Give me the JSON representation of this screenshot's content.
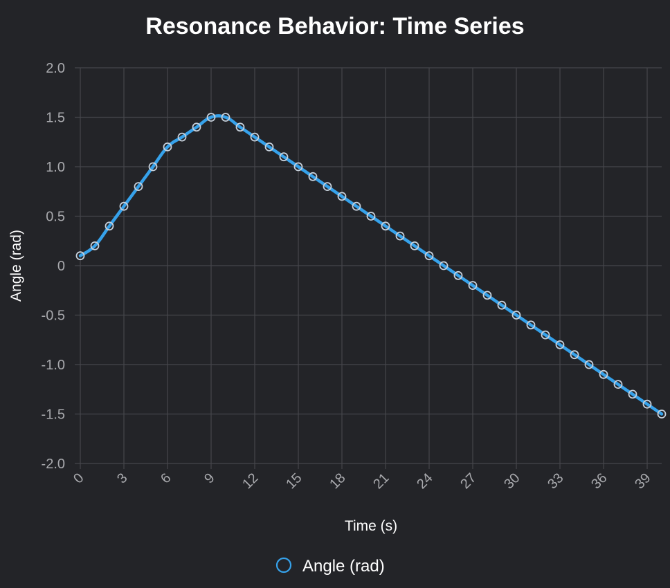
{
  "chart_data": {
    "type": "line",
    "title": "Resonance Behavior: Time Series",
    "xlabel": "Time (s)",
    "ylabel": "Angle (rad)",
    "xlim": [
      0,
      40
    ],
    "ylim": [
      -2.0,
      2.0
    ],
    "x_ticks": [
      "0",
      "3",
      "6",
      "9",
      "12",
      "15",
      "18",
      "21",
      "24",
      "27",
      "30",
      "33",
      "36",
      "39"
    ],
    "y_ticks": [
      "2.0",
      "1.5",
      "1.0",
      "0.5",
      "0",
      "-0.5",
      "-1.0",
      "-1.5",
      "-2.0"
    ],
    "grid": true,
    "legend_position": "bottom",
    "series": [
      {
        "name": "Angle (rad)",
        "color": "#36a2eb",
        "x": [
          0,
          1,
          2,
          3,
          4,
          5,
          6,
          7,
          8,
          9,
          10,
          11,
          12,
          13,
          14,
          15,
          16,
          17,
          18,
          19,
          20,
          21,
          22,
          23,
          24,
          25,
          26,
          27,
          28,
          29,
          30,
          31,
          32,
          33,
          34,
          35,
          36,
          37,
          38,
          39,
          40
        ],
        "values": [
          0.1,
          0.2,
          0.4,
          0.6,
          0.8,
          1.0,
          1.2,
          1.3,
          1.4,
          1.5,
          1.5,
          1.4,
          1.3,
          1.2,
          1.1,
          1.0,
          0.9,
          0.8,
          0.7,
          0.6,
          0.5,
          0.4,
          0.3,
          0.2,
          0.1,
          0.0,
          -0.1,
          -0.2,
          -0.3,
          -0.4,
          -0.5,
          -0.6,
          -0.7,
          -0.8,
          -0.9,
          -1.0,
          -1.1,
          -1.2,
          -1.3,
          -1.4,
          -1.5
        ]
      }
    ]
  }
}
